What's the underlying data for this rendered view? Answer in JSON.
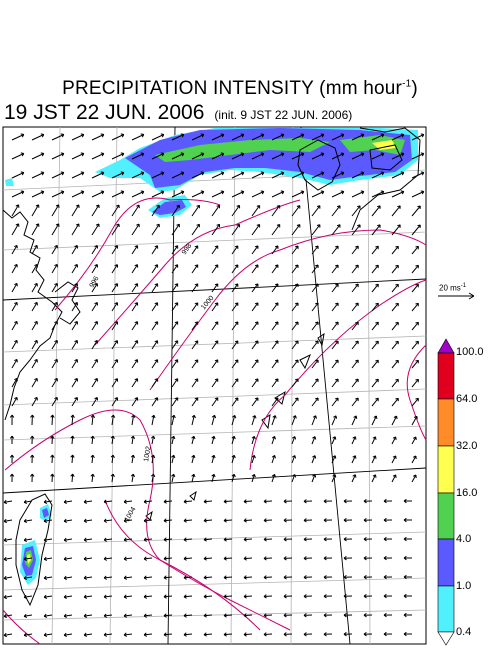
{
  "title": {
    "main": "PRECIPITATION INTENSITY (mm hour",
    "exp": "-1",
    "close": ")"
  },
  "subtitle": {
    "valid": "19 JST 22 JUN. 2006",
    "init": "(init. 9 JST 22 JUN. 2006)"
  },
  "wind_scale": {
    "value": "20 ms",
    "exp": "-1"
  },
  "colorbar": {
    "levels": [
      "100.0",
      "64.0",
      "32.0",
      "16.0",
      "4.0",
      "1.0",
      "0.4"
    ],
    "colors": [
      "#e0001e",
      "#ff8c28",
      "#ffff50",
      "#50d250",
      "#5a5aff",
      "#50f0ff"
    ],
    "top_arrow_color": "#a000c8"
  },
  "isobars": {
    "color": "#c8006e",
    "labels": [
      "996",
      "998",
      "1000",
      "1002",
      "1004"
    ]
  },
  "colors": {
    "land": "#000000",
    "grid": "#b4b4b4",
    "frame": "#000000"
  }
}
